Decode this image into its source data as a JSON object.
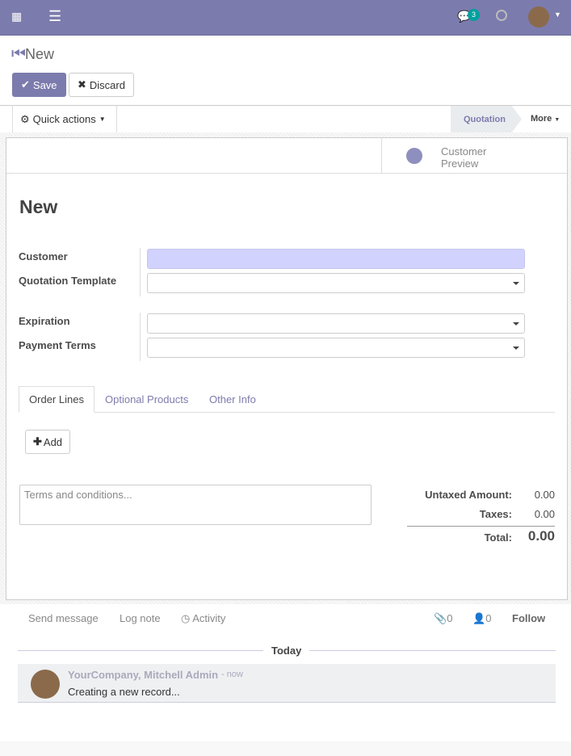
{
  "nav": {
    "notification_count": "3"
  },
  "breadcrumb": {
    "title": "New"
  },
  "buttons": {
    "save": "Save",
    "discard": "Discard",
    "quick_actions": "Quick actions"
  },
  "statusbar": {
    "state": "Quotation",
    "more": "More"
  },
  "smart_button": {
    "label1": "Customer",
    "label2": "Preview"
  },
  "form": {
    "title": "New",
    "customer": "Customer",
    "template": "Quotation Template",
    "expiration": "Expiration",
    "payment_terms": "Payment Terms"
  },
  "tabs": [
    "Order Lines",
    "Optional Products",
    "Other Info"
  ],
  "add": "Add",
  "terms_placeholder": "Terms and conditions...",
  "totals": {
    "untaxed_label": "Untaxed Amount:",
    "untaxed": "0.00",
    "taxes_label": "Taxes:",
    "taxes": "0.00",
    "total_label": "Total:",
    "total": "0.00"
  },
  "chatter": {
    "send": "Send message",
    "log": "Log note",
    "activity": "Activity",
    "attachments": "0",
    "followers": "0",
    "follow": "Follow",
    "date": "Today",
    "author": "YourCompany, Mitchell Admin",
    "time": "- now",
    "body": "Creating a new record..."
  },
  "colors": {
    "brand": "#7c7bad",
    "badge": "#00a09d",
    "required": "#d2d2ff"
  }
}
